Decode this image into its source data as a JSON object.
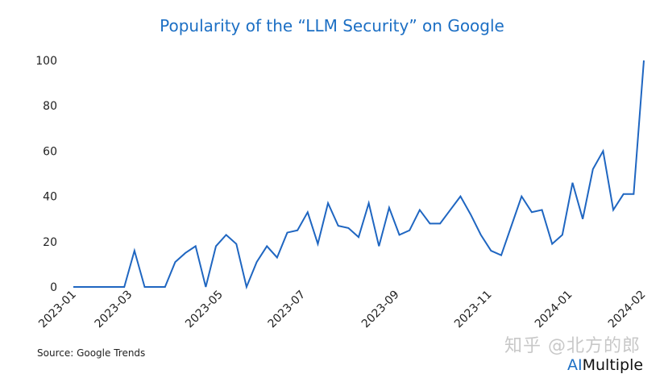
{
  "chart_data": {
    "type": "line",
    "title": "Popularity of the “LLM Security” on Google",
    "xlabel": "",
    "ylabel": "",
    "ylim": [
      0,
      100
    ],
    "yticks": [
      "0",
      "20",
      "40",
      "60",
      "80",
      "100"
    ],
    "xticks": [
      "2023-01",
      "2023-03",
      "2023-05",
      "2023-07",
      "2023-09",
      "2023-11",
      "2024-01",
      "2024-02"
    ],
    "grid": false,
    "line_color": "#1f66c1",
    "values": [
      0,
      0,
      0,
      0,
      0,
      0,
      16,
      0,
      0,
      0,
      11,
      15,
      18,
      0,
      18,
      23,
      19,
      0,
      11,
      18,
      13,
      24,
      25,
      33,
      19,
      37,
      27,
      26,
      22,
      37,
      18,
      35,
      23,
      25,
      34,
      28,
      28,
      34,
      40,
      32,
      23,
      16,
      14,
      27,
      40,
      33,
      34,
      19,
      23,
      46,
      30,
      52,
      60,
      34,
      41,
      41,
      100
    ]
  },
  "source": "Source: Google Trends",
  "watermark": "知乎 @北方的郎",
  "logo": {
    "ai": "AI",
    "rest": "Multiple"
  }
}
